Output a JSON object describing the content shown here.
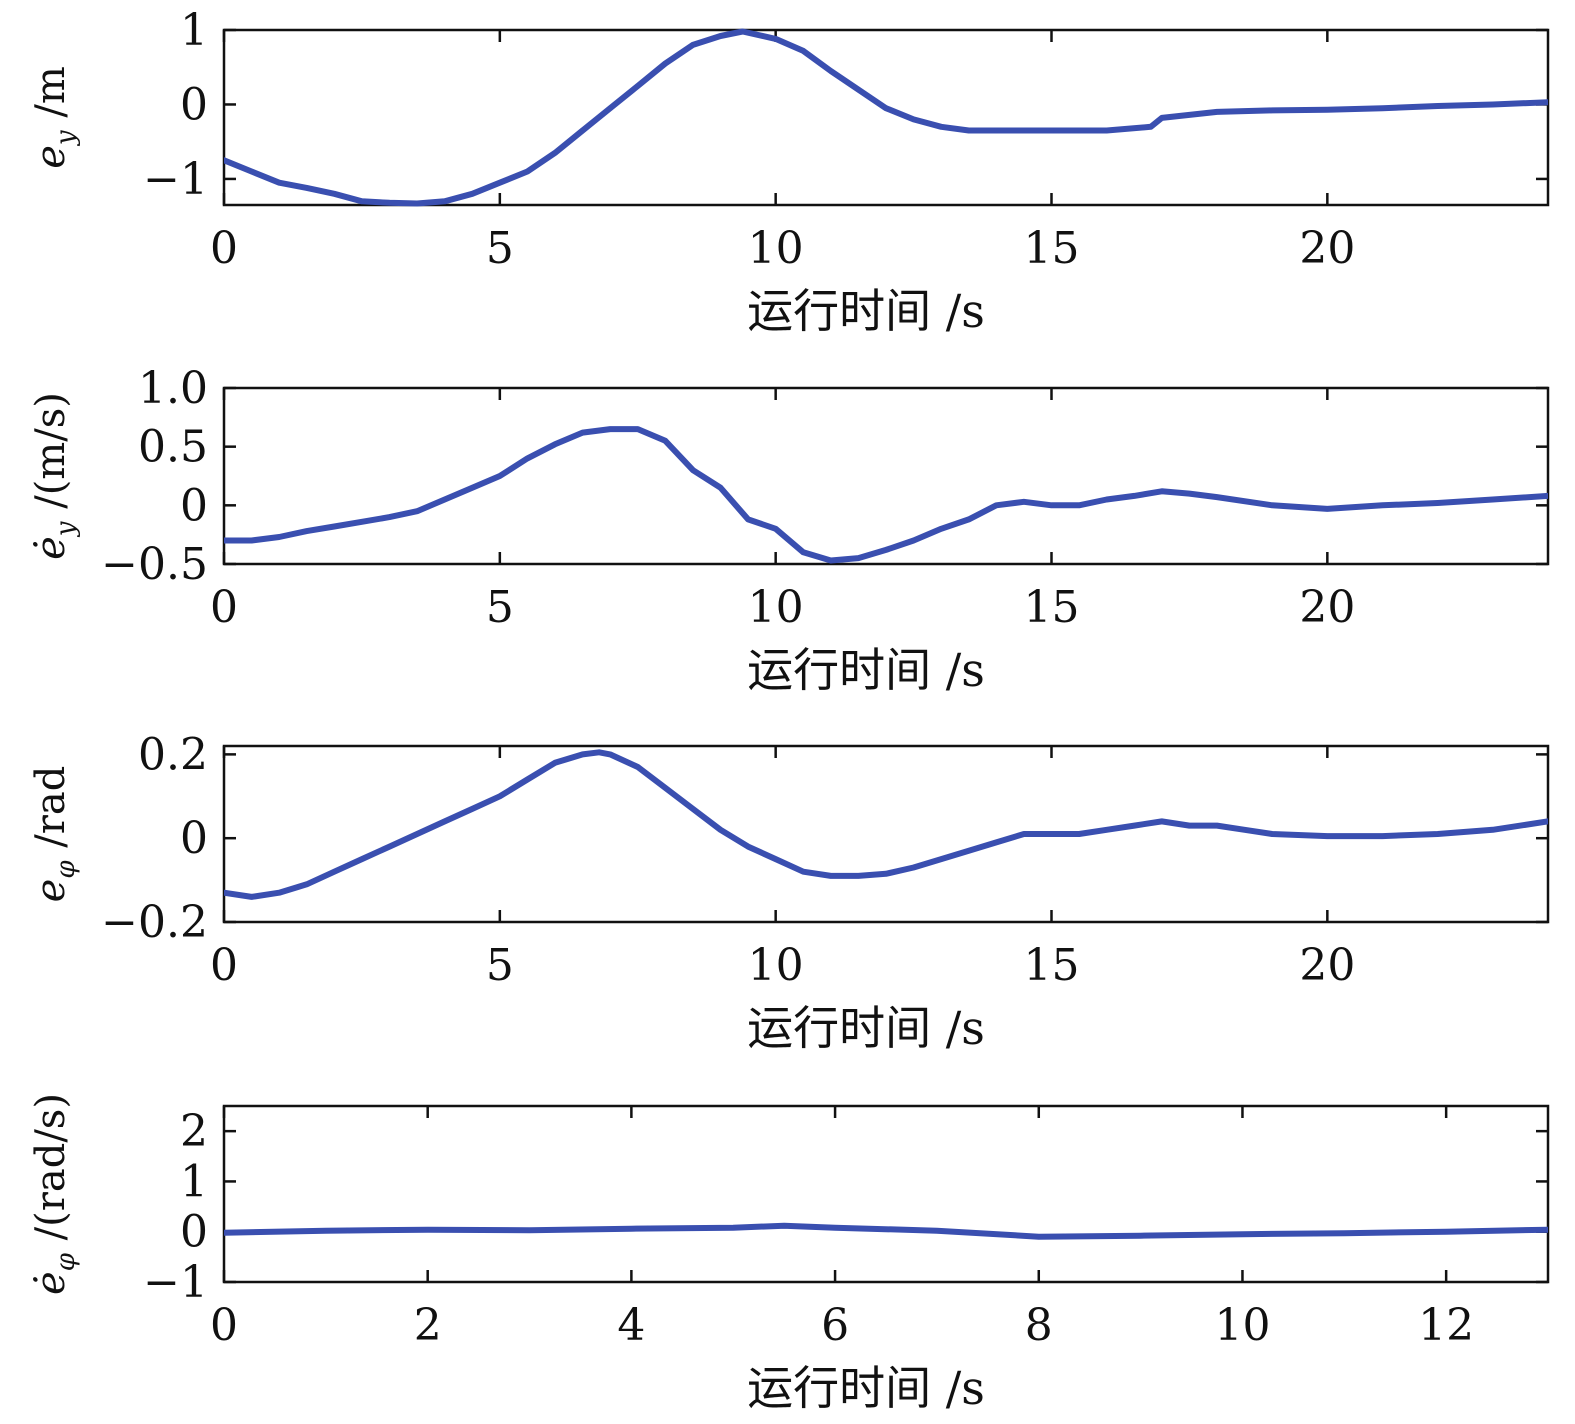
{
  "chart_data": [
    {
      "type": "line",
      "xlabel": "运行时间 /s",
      "ylabel": "e_y /m",
      "ylabel_parts": {
        "base": "e",
        "dot": false,
        "sub": "y",
        "unit": " /m"
      },
      "xlim": [
        0,
        24
      ],
      "ylim": [
        -1.35,
        1.0
      ],
      "xticks": [
        0,
        5,
        10,
        15,
        20
      ],
      "xtick_labels": [
        "0",
        "5",
        "10",
        "15",
        "20"
      ],
      "yticks": [
        -1,
        0,
        1
      ],
      "ytick_labels": [
        "−1",
        "0",
        "1"
      ],
      "grid": false,
      "series": [
        {
          "color": "#3a4fb0",
          "x": [
            0,
            0.5,
            1,
            1.5,
            2,
            2.5,
            3,
            3.5,
            4,
            4.5,
            5,
            5.5,
            6,
            6.5,
            7,
            7.5,
            8,
            8.5,
            9,
            9.4,
            10,
            10.5,
            11,
            11.5,
            12,
            12.5,
            13,
            13.5,
            14,
            15,
            16,
            16.8,
            17,
            18,
            19,
            20,
            21,
            22,
            23,
            24
          ],
          "y": [
            -0.75,
            -0.9,
            -1.05,
            -1.12,
            -1.2,
            -1.3,
            -1.32,
            -1.33,
            -1.3,
            -1.2,
            -1.05,
            -0.9,
            -0.65,
            -0.35,
            -0.05,
            0.25,
            0.55,
            0.8,
            0.92,
            0.98,
            0.88,
            0.72,
            0.45,
            0.2,
            -0.05,
            -0.2,
            -0.3,
            -0.35,
            -0.35,
            -0.35,
            -0.35,
            -0.3,
            -0.18,
            -0.1,
            -0.08,
            -0.07,
            -0.05,
            -0.02,
            0.0,
            0.03
          ]
        }
      ]
    },
    {
      "type": "line",
      "xlabel": "运行时间 /s",
      "ylabel": "ė_y /(m/s)",
      "ylabel_parts": {
        "base": "e",
        "dot": true,
        "sub": "y",
        "unit": " /(m/s)"
      },
      "xlim": [
        0,
        24
      ],
      "ylim": [
        -0.5,
        1.0
      ],
      "xticks": [
        0,
        5,
        10,
        15,
        20
      ],
      "xtick_labels": [
        "0",
        "5",
        "10",
        "15",
        "20"
      ],
      "yticks": [
        -0.5,
        0,
        0.5,
        1.0
      ],
      "ytick_labels": [
        "−0.5",
        "0",
        "0.5",
        "1.0"
      ],
      "grid": false,
      "series": [
        {
          "color": "#3a4fb0",
          "x": [
            0,
            0.5,
            1,
            1.5,
            2,
            2.5,
            3,
            3.5,
            4,
            4.5,
            5,
            5.5,
            6,
            6.5,
            7,
            7.5,
            8,
            8.5,
            9,
            9.5,
            10,
            10.5,
            11,
            11.5,
            12,
            12.5,
            13,
            13.5,
            14,
            14.5,
            15,
            15.5,
            16,
            16.5,
            17,
            17.5,
            18,
            19,
            20,
            21,
            22,
            23,
            24
          ],
          "y": [
            -0.3,
            -0.3,
            -0.27,
            -0.22,
            -0.18,
            -0.14,
            -0.1,
            -0.05,
            0.05,
            0.15,
            0.25,
            0.4,
            0.52,
            0.62,
            0.65,
            0.65,
            0.55,
            0.3,
            0.15,
            -0.12,
            -0.2,
            -0.4,
            -0.47,
            -0.45,
            -0.38,
            -0.3,
            -0.2,
            -0.12,
            0.0,
            0.03,
            0.0,
            0.0,
            0.05,
            0.08,
            0.12,
            0.1,
            0.07,
            0.0,
            -0.03,
            0.0,
            0.02,
            0.05,
            0.08
          ]
        }
      ]
    },
    {
      "type": "line",
      "xlabel": "运行时间 /s",
      "ylabel": "e_φ /rad",
      "ylabel_parts": {
        "base": "e",
        "dot": false,
        "sub": "φ",
        "unit": " /rad"
      },
      "xlim": [
        0,
        24
      ],
      "ylim": [
        -0.2,
        0.22
      ],
      "xticks": [
        0,
        5,
        10,
        15,
        20
      ],
      "xtick_labels": [
        "0",
        "5",
        "10",
        "15",
        "20"
      ],
      "yticks": [
        -0.2,
        0,
        0.2
      ],
      "ytick_labels": [
        "−0.2",
        "0",
        "0.2"
      ],
      "grid": false,
      "series": [
        {
          "color": "#3a4fb0",
          "x": [
            0,
            0.5,
            1,
            1.5,
            2,
            2.5,
            3,
            3.5,
            4,
            4.5,
            5,
            5.5,
            6,
            6.5,
            6.8,
            7,
            7.5,
            8,
            8.5,
            9,
            9.5,
            10,
            10.5,
            11,
            11.5,
            12,
            12.5,
            13,
            13.5,
            14,
            14.5,
            15,
            15.5,
            16,
            16.5,
            17,
            17.5,
            18,
            18.5,
            19,
            20,
            21,
            22,
            23,
            24
          ],
          "y": [
            -0.13,
            -0.14,
            -0.13,
            -0.11,
            -0.08,
            -0.05,
            -0.02,
            0.01,
            0.04,
            0.07,
            0.1,
            0.14,
            0.18,
            0.2,
            0.205,
            0.2,
            0.17,
            0.12,
            0.07,
            0.02,
            -0.02,
            -0.05,
            -0.08,
            -0.09,
            -0.09,
            -0.085,
            -0.07,
            -0.05,
            -0.03,
            -0.01,
            0.01,
            0.01,
            0.01,
            0.02,
            0.03,
            0.04,
            0.03,
            0.03,
            0.02,
            0.01,
            0.005,
            0.005,
            0.01,
            0.02,
            0.04
          ]
        }
      ]
    },
    {
      "type": "line",
      "xlabel": "运行时间 /s",
      "ylabel": "ė_φ /(rad/s)",
      "ylabel_parts": {
        "base": "e",
        "dot": true,
        "sub": "φ",
        "unit": " /(rad/s)"
      },
      "xlim": [
        0,
        13
      ],
      "ylim": [
        -1,
        2.5
      ],
      "xticks": [
        0,
        2,
        4,
        6,
        8,
        10,
        12
      ],
      "xtick_labels": [
        "0",
        "2",
        "4",
        "6",
        "8",
        "10",
        "12"
      ],
      "yticks": [
        -1,
        0,
        1,
        2
      ],
      "ytick_labels": [
        "−1",
        "0",
        "1",
        "2"
      ],
      "grid": false,
      "series": [
        {
          "color": "#3a4fb0",
          "x": [
            0,
            1,
            2,
            3,
            4,
            5,
            5.5,
            6,
            7,
            8,
            9,
            10,
            11,
            12,
            13
          ],
          "y": [
            -0.02,
            0.02,
            0.04,
            0.03,
            0.06,
            0.08,
            0.12,
            0.08,
            0.02,
            -0.1,
            -0.08,
            -0.05,
            -0.03,
            0.0,
            0.04
          ]
        }
      ]
    }
  ]
}
